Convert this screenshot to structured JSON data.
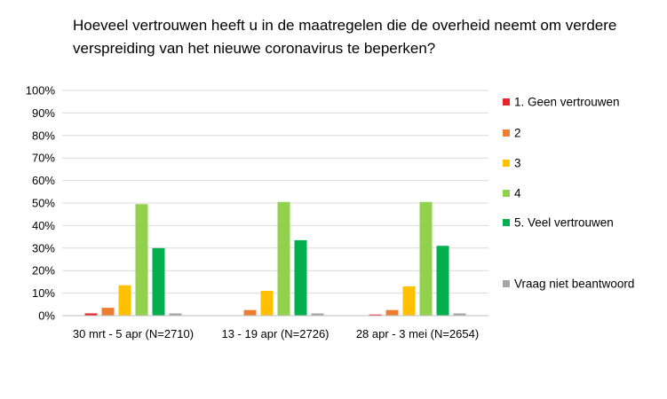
{
  "chart_data": {
    "type": "bar",
    "title": "Hoeveel vertrouwen heeft u in de maatregelen die de overheid neemt om verdere verspreiding van het nieuwe coronavirus te beperken?",
    "categories": [
      "30 mrt - 5 apr (N=2710)",
      "13 - 19 apr (N=2726)",
      "28 apr - 3 mei (N=2654)"
    ],
    "ylim": [
      0,
      100
    ],
    "yticks": [
      "0%",
      "10%",
      "20%",
      "30%",
      "40%",
      "50%",
      "60%",
      "70%",
      "80%",
      "90%",
      "100%"
    ],
    "grid": true,
    "legend_position": "right",
    "series": [
      {
        "name": "1. Geen vertrouwen",
        "color": "#e8232a",
        "values": [
          1,
          0,
          0.5
        ]
      },
      {
        "name": "2",
        "color": "#ed7d31",
        "values": [
          3.5,
          2.5,
          2.5
        ]
      },
      {
        "name": "3",
        "color": "#ffc000",
        "values": [
          13.5,
          11,
          13
        ]
      },
      {
        "name": "4",
        "color": "#92d050",
        "values": [
          49.5,
          50.5,
          50.5
        ]
      },
      {
        "name": "5. Veel vertrouwen",
        "color": "#00b050",
        "values": [
          30,
          33.5,
          31
        ]
      },
      {
        "name": "Vraag niet beantwoord",
        "color": "#a5a5a5",
        "values": [
          1,
          1,
          1
        ]
      }
    ]
  }
}
